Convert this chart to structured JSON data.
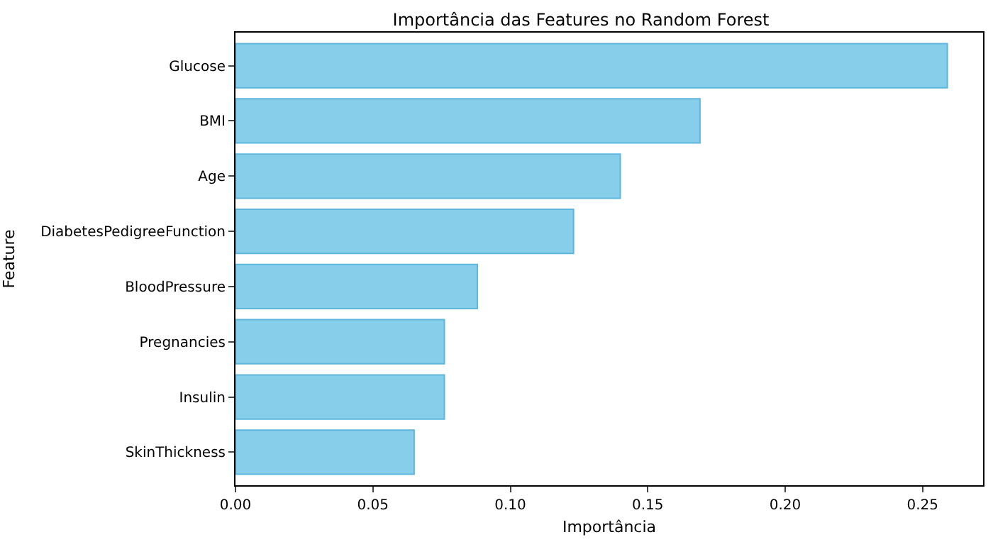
{
  "chart_data": {
    "type": "bar",
    "orientation": "horizontal",
    "title": "Importância das Features no Random Forest",
    "xlabel": "Importância",
    "ylabel": "Feature",
    "categories": [
      "Glucose",
      "BMI",
      "Age",
      "DiabetesPedigreeFunction",
      "BloodPressure",
      "Pregnancies",
      "Insulin",
      "SkinThickness"
    ],
    "values": [
      0.259,
      0.169,
      0.14,
      0.123,
      0.088,
      0.076,
      0.076,
      0.065
    ],
    "color": "#87ceeb",
    "xlim": [
      0,
      0.272
    ],
    "xticks": [
      {
        "value": 0,
        "label": "0.00"
      },
      0.05,
      {
        "value": 0.1,
        "label": "0.10"
      },
      0.15,
      {
        "value": 0.2,
        "label": "0.20"
      },
      0.25
    ]
  }
}
